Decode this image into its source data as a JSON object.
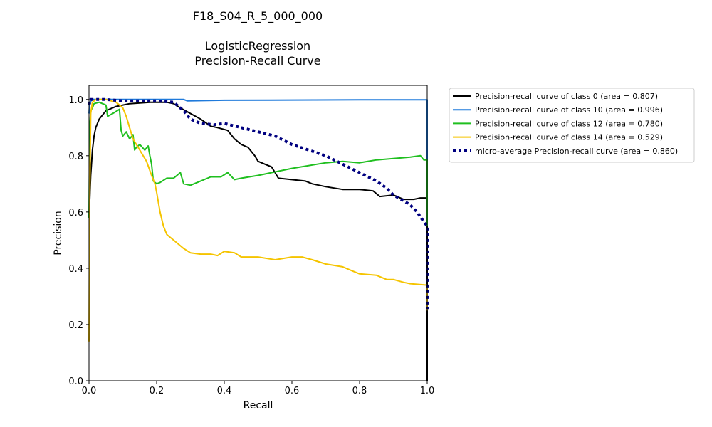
{
  "chart_data": {
    "type": "line",
    "title_lines": [
      "F18_S04_R_5_000_000",
      "",
      "LogisticRegression",
      "Precision-Recall Curve"
    ],
    "xlabel": "Recall",
    "ylabel": "Precision",
    "xlim": [
      0.0,
      1.0
    ],
    "ylim": [
      0.0,
      1.05
    ],
    "xticks": [
      0.0,
      0.2,
      0.4,
      0.6,
      0.8,
      1.0
    ],
    "xtick_labels": [
      "0.0",
      "0.2",
      "0.4",
      "0.6",
      "0.8",
      "1.0"
    ],
    "yticks": [
      0.0,
      0.2,
      0.4,
      0.6,
      0.8,
      1.0
    ],
    "ytick_labels": [
      "0.0",
      "0.2",
      "0.4",
      "0.6",
      "0.8",
      "1.0"
    ],
    "grid": false,
    "legend_placement": "outside-right-top",
    "series": [
      {
        "name": "Precision-recall curve of class 0 (area = 0.807)",
        "color": "#000000",
        "style": "solid",
        "x": [
          0.0,
          0.005,
          0.01,
          0.015,
          0.02,
          0.03,
          0.05,
          0.08,
          0.12,
          0.18,
          0.23,
          0.25,
          0.27,
          0.3,
          0.33,
          0.36,
          0.38,
          0.41,
          0.43,
          0.45,
          0.47,
          0.49,
          0.5,
          0.52,
          0.54,
          0.55,
          0.56,
          0.6,
          0.64,
          0.66,
          0.7,
          0.75,
          0.8,
          0.84,
          0.86,
          0.9,
          0.93,
          0.96,
          0.98,
          1.0,
          1.0
        ],
        "y": [
          0.58,
          0.73,
          0.82,
          0.87,
          0.9,
          0.93,
          0.96,
          0.975,
          0.985,
          0.99,
          0.99,
          0.985,
          0.97,
          0.95,
          0.93,
          0.905,
          0.9,
          0.89,
          0.86,
          0.84,
          0.83,
          0.8,
          0.78,
          0.77,
          0.76,
          0.74,
          0.72,
          0.715,
          0.71,
          0.7,
          0.69,
          0.68,
          0.68,
          0.675,
          0.655,
          0.66,
          0.645,
          0.645,
          0.65,
          0.65,
          0.0
        ]
      },
      {
        "name": "Precision-recall curve of class 10 (area = 0.996)",
        "color": "#1f7adb",
        "style": "solid",
        "x": [
          0.0,
          0.002,
          0.01,
          0.05,
          0.1,
          0.2,
          0.28,
          0.29,
          0.4,
          0.6,
          0.8,
          0.99,
          1.0,
          1.0
        ],
        "y": [
          0.95,
          0.99,
          1.0,
          1.0,
          1.0,
          1.0,
          1.0,
          0.995,
          0.997,
          0.998,
          0.999,
          0.999,
          0.999,
          0.77
        ]
      },
      {
        "name": "Precision-recall curve of class 12 (area = 0.780)",
        "color": "#1fbf1f",
        "style": "solid",
        "x": [
          0.0,
          0.002,
          0.005,
          0.01,
          0.015,
          0.03,
          0.05,
          0.055,
          0.07,
          0.09,
          0.095,
          0.1,
          0.11,
          0.12,
          0.13,
          0.135,
          0.14,
          0.15,
          0.165,
          0.175,
          0.18,
          0.185,
          0.19,
          0.2,
          0.21,
          0.23,
          0.25,
          0.27,
          0.28,
          0.3,
          0.33,
          0.36,
          0.39,
          0.41,
          0.43,
          0.45,
          0.5,
          0.6,
          0.7,
          0.75,
          0.8,
          0.85,
          0.9,
          0.95,
          0.98,
          0.99,
          1.0,
          1.0
        ],
        "y": [
          0.58,
          0.9,
          0.96,
          0.97,
          0.985,
          0.99,
          0.98,
          0.94,
          0.95,
          0.965,
          0.89,
          0.87,
          0.885,
          0.86,
          0.875,
          0.82,
          0.83,
          0.84,
          0.82,
          0.835,
          0.8,
          0.77,
          0.71,
          0.7,
          0.705,
          0.72,
          0.72,
          0.74,
          0.7,
          0.695,
          0.71,
          0.725,
          0.725,
          0.74,
          0.715,
          0.72,
          0.73,
          0.755,
          0.775,
          0.78,
          0.775,
          0.785,
          0.79,
          0.795,
          0.8,
          0.785,
          0.785,
          0.55
        ]
      },
      {
        "name": "Precision-recall curve of class 14 (area = 0.529)",
        "color": "#f5c400",
        "style": "solid",
        "x": [
          0.0,
          0.002,
          0.005,
          0.01,
          0.02,
          0.05,
          0.08,
          0.1,
          0.11,
          0.12,
          0.13,
          0.15,
          0.17,
          0.185,
          0.195,
          0.2,
          0.21,
          0.22,
          0.23,
          0.25,
          0.28,
          0.3,
          0.33,
          0.36,
          0.38,
          0.4,
          0.43,
          0.45,
          0.5,
          0.55,
          0.6,
          0.63,
          0.66,
          0.7,
          0.75,
          0.78,
          0.8,
          0.85,
          0.88,
          0.9,
          0.93,
          0.95,
          1.0,
          1.0
        ],
        "y": [
          0.14,
          0.65,
          0.95,
          0.99,
          1.0,
          1.0,
          0.99,
          0.97,
          0.94,
          0.9,
          0.86,
          0.82,
          0.78,
          0.73,
          0.7,
          0.67,
          0.6,
          0.55,
          0.52,
          0.5,
          0.47,
          0.455,
          0.45,
          0.45,
          0.445,
          0.46,
          0.455,
          0.44,
          0.44,
          0.43,
          0.44,
          0.44,
          0.43,
          0.415,
          0.405,
          0.39,
          0.38,
          0.375,
          0.36,
          0.36,
          0.35,
          0.345,
          0.34,
          0.25
        ]
      },
      {
        "name": "micro-average Precision-recall curve (area = 0.860)",
        "color": "#000080",
        "style": "dotted",
        "x": [
          0.0,
          0.005,
          0.01,
          0.05,
          0.1,
          0.15,
          0.2,
          0.25,
          0.28,
          0.3,
          0.33,
          0.37,
          0.4,
          0.45,
          0.5,
          0.55,
          0.6,
          0.65,
          0.7,
          0.75,
          0.8,
          0.85,
          0.88,
          0.9,
          0.93,
          0.95,
          0.97,
          0.99,
          1.0,
          1.0
        ],
        "y": [
          0.98,
          1.0,
          1.0,
          1.0,
          0.995,
          0.995,
          0.995,
          0.99,
          0.96,
          0.93,
          0.915,
          0.91,
          0.915,
          0.9,
          0.885,
          0.87,
          0.84,
          0.82,
          0.8,
          0.77,
          0.74,
          0.71,
          0.685,
          0.66,
          0.64,
          0.625,
          0.6,
          0.565,
          0.55,
          0.255
        ]
      }
    ]
  }
}
